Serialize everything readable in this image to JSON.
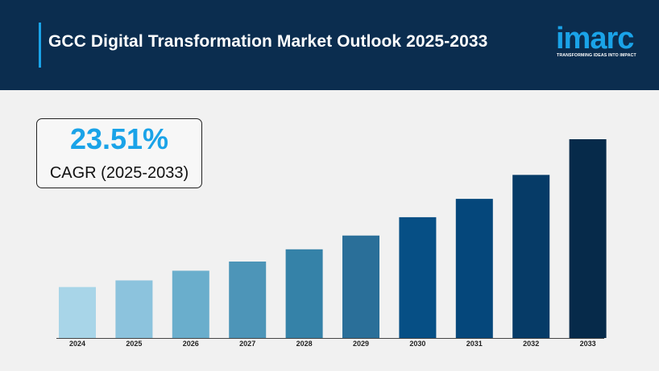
{
  "header": {
    "title": "GCC Digital Transformation Market Outlook 2025-2033",
    "background": "#0b2d4f",
    "accent": "#1aa3e8"
  },
  "logo": {
    "word": "imarc",
    "tagline": "TRANSFORMING IDEAS INTO IMPACT"
  },
  "cagr": {
    "value": "23.51%",
    "label": "CAGR (2025-2033)"
  },
  "chart_data": {
    "type": "bar",
    "title": "",
    "xlabel": "",
    "ylabel": "",
    "categories": [
      "2024",
      "2025",
      "2026",
      "2027",
      "2028",
      "2029",
      "2030",
      "2031",
      "2032",
      "2033"
    ],
    "values": [
      1.0,
      1.13,
      1.32,
      1.5,
      1.74,
      2.01,
      2.37,
      2.73,
      3.2,
      3.9
    ],
    "ylim": [
      0,
      4.2
    ],
    "grid": false,
    "colors": [
      "#a8d5e8",
      "#8cc3dd",
      "#6aaecc",
      "#4d95b8",
      "#3582a8",
      "#2a6f99",
      "#064f85",
      "#05477b",
      "#063b67",
      "#062a4a"
    ]
  }
}
